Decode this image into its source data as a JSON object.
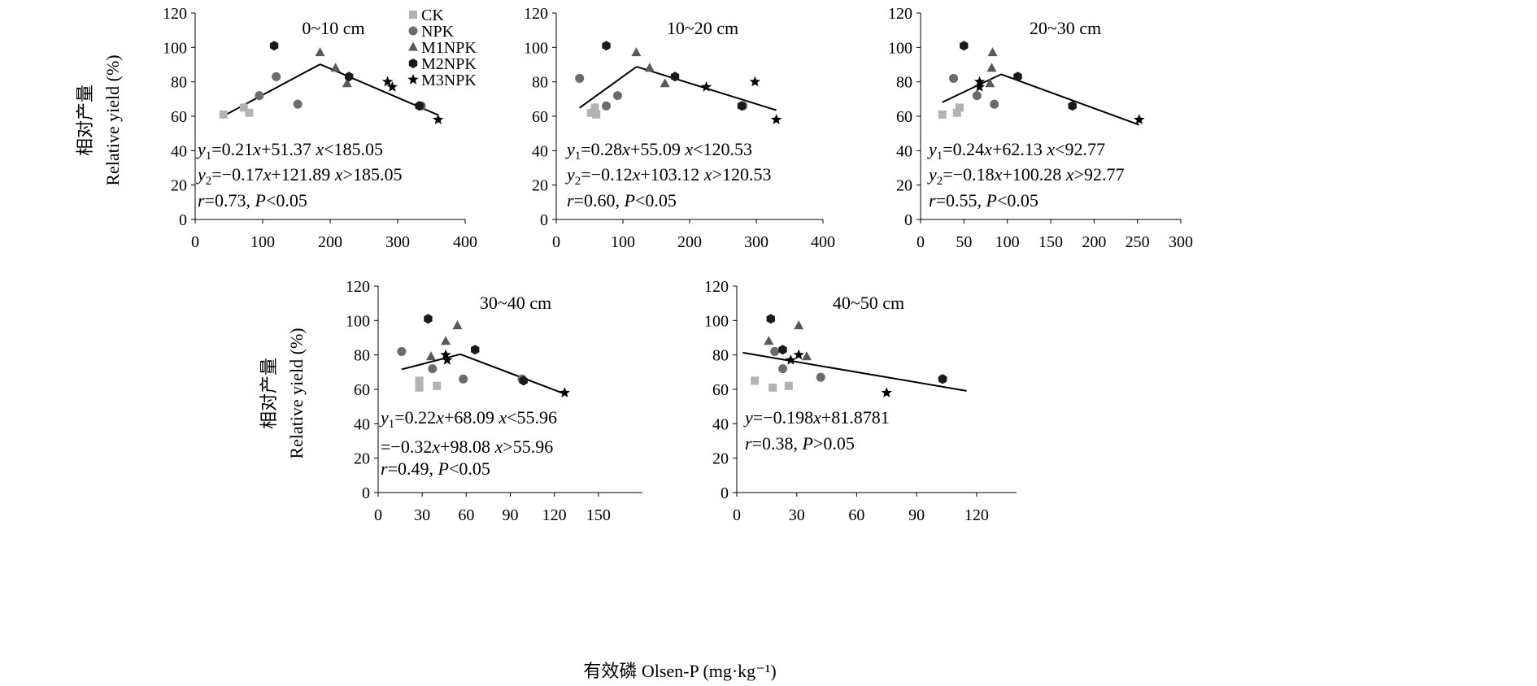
{
  "figure": {
    "ylabel_cn": "相对产量",
    "ylabel_en": "Relative yield (%)",
    "xlabel": "有效磷 Olsen-P (mg·kg⁻¹)",
    "legend": [
      {
        "name": "CK",
        "marker": "square",
        "color": "#b3b3b3"
      },
      {
        "name": "NPK",
        "marker": "circle",
        "color": "#6b6b6b"
      },
      {
        "name": "M1NPK",
        "marker": "triangle",
        "color": "#595959"
      },
      {
        "name": "M2NPK",
        "marker": "hexagon",
        "color": "#1a1a1a"
      },
      {
        "name": "M3NPK",
        "marker": "star",
        "color": "#000000"
      }
    ]
  },
  "chart_data": [
    {
      "type": "scatter",
      "title": "0~10 cm",
      "xlim": [
        0,
        400
      ],
      "ylim": [
        0,
        120
      ],
      "xticks": [
        0,
        100,
        200,
        300,
        400
      ],
      "yticks": [
        0,
        20,
        40,
        60,
        80,
        100,
        120
      ],
      "show_ylabel": true,
      "show_legend": true,
      "series": [
        {
          "name": "CK",
          "points": [
            [
              42,
              61
            ],
            [
              72,
              65
            ],
            [
              80,
              62
            ]
          ]
        },
        {
          "name": "NPK",
          "points": [
            [
              95,
              72
            ],
            [
              120,
              83
            ],
            [
              152,
              67
            ],
            [
              335,
              66
            ]
          ]
        },
        {
          "name": "M1NPK",
          "points": [
            [
              185,
              97
            ],
            [
              208,
              88
            ],
            [
              225,
              79
            ]
          ]
        },
        {
          "name": "M2NPK",
          "points": [
            [
              117,
              101
            ],
            [
              228,
              83
            ],
            [
              332,
              66
            ]
          ]
        },
        {
          "name": "M3NPK",
          "points": [
            [
              285,
              80
            ],
            [
              292,
              77
            ],
            [
              360,
              58
            ]
          ]
        }
      ],
      "fit_lines": [
        [
          [
            42,
            60.2
          ],
          [
            185.05,
            90.2
          ]
        ],
        [
          [
            185.05,
            90.2
          ],
          [
            360,
            60.7
          ]
        ]
      ],
      "annotations": [
        {
          "prefix": "y",
          "sub": "1",
          "text": "=0.21x+51.37  x<185.05"
        },
        {
          "prefix": "y",
          "sub": "2",
          "text": "=−0.17x+121.89  x>185.05"
        },
        {
          "prefix": "",
          "sub": "",
          "text": "r=0.73, P<0.05"
        }
      ]
    },
    {
      "type": "scatter",
      "title": "10~20 cm",
      "xlim": [
        0,
        400
      ],
      "ylim": [
        0,
        120
      ],
      "xticks": [
        0,
        100,
        200,
        300,
        400
      ],
      "yticks": [
        0,
        20,
        40,
        60,
        80,
        100,
        120
      ],
      "show_ylabel": false,
      "show_legend": false,
      "series": [
        {
          "name": "CK",
          "points": [
            [
              52,
              62
            ],
            [
              58,
              65
            ],
            [
              60,
              61
            ]
          ]
        },
        {
          "name": "NPK",
          "points": [
            [
              35,
              82
            ],
            [
              75,
              66
            ],
            [
              92,
              72
            ],
            [
              280,
              66
            ]
          ]
        },
        {
          "name": "M1NPK",
          "points": [
            [
              120,
              97
            ],
            [
              140,
              88
            ],
            [
              163,
              79
            ]
          ]
        },
        {
          "name": "M2NPK",
          "points": [
            [
              75,
              101
            ],
            [
              178,
              83
            ],
            [
              278,
              66
            ]
          ]
        },
        {
          "name": "M3NPK",
          "points": [
            [
              225,
              77
            ],
            [
              298,
              80
            ],
            [
              330,
              58
            ]
          ]
        }
      ],
      "fit_lines": [
        [
          [
            35,
            64.9
          ],
          [
            120.53,
            88.8
          ]
        ],
        [
          [
            120.53,
            88.8
          ],
          [
            330,
            63.5
          ]
        ]
      ],
      "annotations": [
        {
          "prefix": "y",
          "sub": "1",
          "text": "=0.28x+55.09  x<120.53"
        },
        {
          "prefix": "y",
          "sub": "2",
          "text": "=−0.12x+103.12  x>120.53"
        },
        {
          "prefix": "",
          "sub": "",
          "text": "r=0.60, P<0.05"
        }
      ]
    },
    {
      "type": "scatter",
      "title": "20~30 cm",
      "xlim": [
        0,
        300
      ],
      "ylim": [
        0,
        120
      ],
      "xticks": [
        0,
        50,
        100,
        150,
        200,
        250,
        300
      ],
      "yticks": [
        0,
        20,
        40,
        60,
        80,
        100,
        120
      ],
      "show_ylabel": false,
      "show_legend": false,
      "series": [
        {
          "name": "CK",
          "points": [
            [
              25,
              61
            ],
            [
              42,
              62
            ],
            [
              45,
              65
            ]
          ]
        },
        {
          "name": "NPK",
          "points": [
            [
              38,
              82
            ],
            [
              65,
              72
            ],
            [
              85,
              67
            ]
          ]
        },
        {
          "name": "M1NPK",
          "points": [
            [
              80,
              79
            ],
            [
              82,
              88
            ],
            [
              83,
              97
            ]
          ]
        },
        {
          "name": "M2NPK",
          "points": [
            [
              50,
              101
            ],
            [
              112,
              83
            ],
            [
              175,
              66
            ]
          ]
        },
        {
          "name": "M3NPK",
          "points": [
            [
              68,
              80
            ],
            [
              68,
              77
            ],
            [
              252,
              58
            ]
          ]
        }
      ],
      "fit_lines": [
        [
          [
            25,
            68.1
          ],
          [
            92.77,
            84.4
          ]
        ],
        [
          [
            92.77,
            84.4
          ],
          [
            252,
            55.0
          ]
        ]
      ],
      "annotations": [
        {
          "prefix": "y",
          "sub": "1",
          "text": "=0.24x+62.13  x<92.77"
        },
        {
          "prefix": "y",
          "sub": "2",
          "text": "=−0.18x+100.28  x>92.77"
        },
        {
          "prefix": "",
          "sub": "",
          "text": "r=0.55, P<0.05"
        }
      ]
    },
    {
      "type": "scatter",
      "title": "30~40 cm",
      "xlim": [
        0,
        180
      ],
      "ylim": [
        0,
        120
      ],
      "xticks": [
        0,
        30,
        60,
        90,
        120,
        150
      ],
      "yticks": [
        0,
        20,
        40,
        60,
        80,
        100,
        120
      ],
      "show_ylabel": true,
      "show_legend": false,
      "series": [
        {
          "name": "CK",
          "points": [
            [
              28,
              65
            ],
            [
              28,
              61
            ],
            [
              40,
              62
            ]
          ]
        },
        {
          "name": "NPK",
          "points": [
            [
              16,
              82
            ],
            [
              37,
              72
            ],
            [
              58,
              66
            ],
            [
              98,
              66
            ]
          ]
        },
        {
          "name": "M1NPK",
          "points": [
            [
              36,
              79
            ],
            [
              46,
              88
            ],
            [
              54,
              97
            ]
          ]
        },
        {
          "name": "M2NPK",
          "points": [
            [
              34,
              101
            ],
            [
              66,
              83
            ],
            [
              99,
              65
            ]
          ]
        },
        {
          "name": "M3NPK",
          "points": [
            [
              46,
              80
            ],
            [
              47,
              77
            ],
            [
              127,
              58
            ]
          ]
        }
      ],
      "fit_lines": [
        [
          [
            16,
            71.6
          ],
          [
            55.96,
            80.4
          ]
        ],
        [
          [
            55.96,
            80.4
          ],
          [
            127,
            57.4
          ]
        ]
      ],
      "annotations": [
        {
          "prefix": "y",
          "sub": "1",
          "text": "=0.22x+68.09  x<55.96"
        },
        {
          "prefix": "",
          "sub": "",
          "text": "=−0.32x+98.08 x>55.96"
        },
        {
          "prefix": "",
          "sub": "",
          "text": "r=0.49, P<0.05"
        }
      ]
    },
    {
      "type": "scatter",
      "title": "40~50 cm",
      "xlim": [
        0,
        140
      ],
      "ylim": [
        0,
        120
      ],
      "xticks": [
        0,
        30,
        60,
        90,
        120
      ],
      "yticks": [
        0,
        20,
        40,
        60,
        80,
        100,
        120
      ],
      "show_ylabel": false,
      "show_legend": false,
      "series": [
        {
          "name": "CK",
          "points": [
            [
              9,
              65
            ],
            [
              18,
              61
            ],
            [
              26,
              62
            ]
          ]
        },
        {
          "name": "NPK",
          "points": [
            [
              19,
              82
            ],
            [
              23,
              72
            ],
            [
              42,
              67
            ],
            [
              103,
              66
            ]
          ]
        },
        {
          "name": "M1NPK",
          "points": [
            [
              16,
              88
            ],
            [
              31,
              97
            ],
            [
              35,
              79
            ]
          ]
        },
        {
          "name": "M2NPK",
          "points": [
            [
              17,
              101
            ],
            [
              23,
              83
            ],
            [
              103,
              66
            ]
          ]
        },
        {
          "name": "M3NPK",
          "points": [
            [
              27,
              77
            ],
            [
              31,
              80
            ],
            [
              75,
              58
            ]
          ]
        }
      ],
      "fit_lines": [
        [
          [
            3,
            81.3
          ],
          [
            115,
            59.1
          ]
        ]
      ],
      "annotations": [
        {
          "prefix": "",
          "sub": "",
          "text": "y=−0.198x+81.8781"
        },
        {
          "prefix": "",
          "sub": "",
          "text": "r=0.38, P>0.05"
        }
      ]
    }
  ]
}
